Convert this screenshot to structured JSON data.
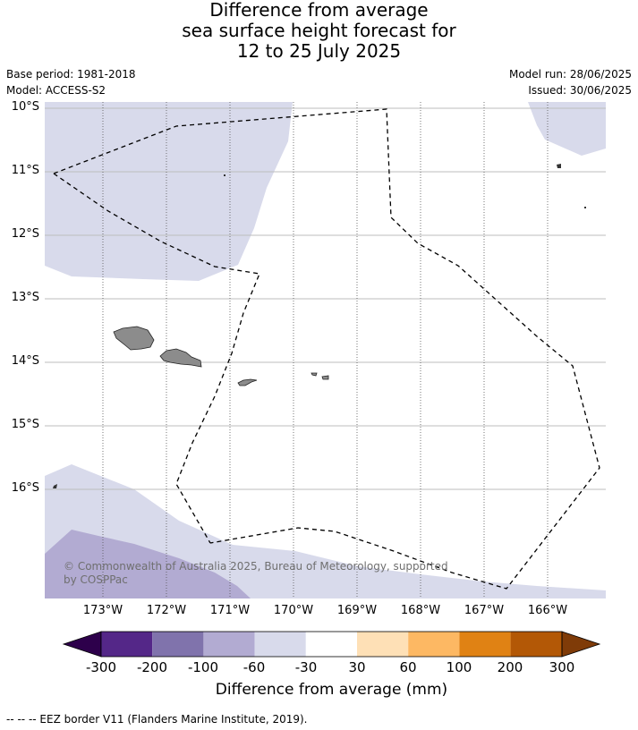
{
  "title": {
    "line1": "Difference from average",
    "line2": "sea surface height forecast for",
    "line3": "12 to 25 July 2025"
  },
  "meta": {
    "base_period": "Base period: 1981-2018",
    "model": "Model: ACCESS-S2",
    "model_run": "Model run: 28/06/2025",
    "issued": "Issued: 30/06/2025"
  },
  "axes": {
    "lat_labels": [
      "10°S",
      "11°S",
      "12°S",
      "13°S",
      "14°S",
      "15°S",
      "16°S"
    ],
    "lon_labels": [
      "173°W",
      "172°W",
      "171°W",
      "170°W",
      "169°W",
      "168°W",
      "167°W",
      "166°W"
    ]
  },
  "copyright": "© Commonwealth of Australia 2025, Bureau of Meteorology, supported by COSPPac",
  "colorbar": {
    "colors": [
      "#2d004b",
      "#542788",
      "#8073ac",
      "#b2abd2",
      "#d8daeb",
      "#ffffff",
      "#fee0b6",
      "#fdb863",
      "#e08214",
      "#b35806",
      "#7f3b08"
    ],
    "tick_labels": [
      "-300",
      "-200",
      "-100",
      "-60",
      "-30",
      "30",
      "60",
      "100",
      "200",
      "300"
    ],
    "title": "Difference from average (mm)"
  },
  "footnote": "--  --  -- EEZ border V11 (Flanders Marine Institute, 2019).",
  "colors": {
    "land": "#8c8c8c",
    "shade_light": "#d8daeb",
    "shade_medium": "#b2abd2"
  }
}
